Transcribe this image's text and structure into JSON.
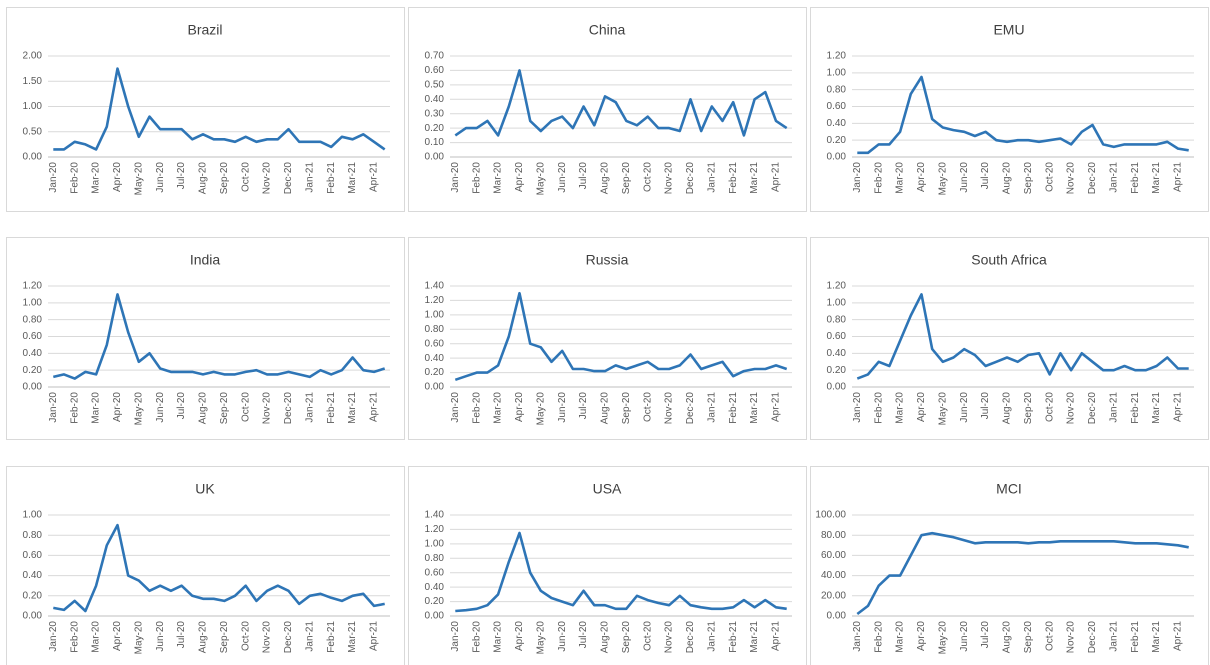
{
  "chart_data": [
    {
      "type": "line",
      "title": "Brazil",
      "color": "#2e75b6",
      "grid": true,
      "categories": [
        "Jan-20",
        null,
        "Feb-20",
        null,
        "Mar-20",
        null,
        "Apr-20",
        null,
        "May-20",
        null,
        "Jun-20",
        null,
        "Jul-20",
        null,
        "Aug-20",
        null,
        "Sep-20",
        null,
        "Oct-20",
        null,
        "Nov-20",
        null,
        "Dec-20",
        null,
        "Jan-21",
        null,
        "Feb-21",
        null,
        "Mar-21",
        null,
        "Apr-21",
        null
      ],
      "values": [
        0.15,
        0.15,
        0.3,
        0.25,
        0.15,
        0.6,
        1.75,
        1.0,
        0.4,
        0.8,
        0.55,
        0.55,
        0.55,
        0.35,
        0.45,
        0.35,
        0.35,
        0.3,
        0.4,
        0.3,
        0.35,
        0.35,
        0.55,
        0.3,
        0.3,
        0.3,
        0.2,
        0.4,
        0.35,
        0.45,
        0.3,
        0.15
      ],
      "ylim": [
        0,
        2
      ],
      "yticks": [
        {
          "value": 0,
          "label": "0.00"
        },
        {
          "value": 0.5,
          "label": "0.50"
        },
        {
          "value": 1,
          "label": "1.00"
        },
        {
          "value": 1.5,
          "label": "1.50"
        },
        {
          "value": 2,
          "label": "2.00"
        }
      ]
    },
    {
      "type": "line",
      "title": "China",
      "color": "#2e75b6",
      "grid": true,
      "categories": [
        "Jan-20",
        null,
        "Feb-20",
        null,
        "Mar-20",
        null,
        "Apr-20",
        null,
        "May-20",
        null,
        "Jun-20",
        null,
        "Jul-20",
        null,
        "Aug-20",
        null,
        "Sep-20",
        null,
        "Oct-20",
        null,
        "Nov-20",
        null,
        "Dec-20",
        null,
        "Jan-21",
        null,
        "Feb-21",
        null,
        "Mar-21",
        null,
        "Apr-21",
        null
      ],
      "values": [
        0.15,
        0.2,
        0.2,
        0.25,
        0.15,
        0.35,
        0.6,
        0.25,
        0.18,
        0.25,
        0.28,
        0.2,
        0.35,
        0.22,
        0.42,
        0.38,
        0.25,
        0.22,
        0.28,
        0.2,
        0.2,
        0.18,
        0.4,
        0.18,
        0.35,
        0.25,
        0.38,
        0.15,
        0.4,
        0.45,
        0.25,
        0.2
      ],
      "ylim": [
        0,
        0.7
      ],
      "yticks": [
        {
          "value": 0,
          "label": "0.00"
        },
        {
          "value": 0.1,
          "label": "0.10"
        },
        {
          "value": 0.2,
          "label": "0.20"
        },
        {
          "value": 0.3,
          "label": "0.30"
        },
        {
          "value": 0.4,
          "label": "0.40"
        },
        {
          "value": 0.5,
          "label": "0.50"
        },
        {
          "value": 0.6,
          "label": "0.60"
        },
        {
          "value": 0.7,
          "label": "0.70"
        }
      ]
    },
    {
      "type": "line",
      "title": "EMU",
      "color": "#2e75b6",
      "grid": true,
      "categories": [
        "Jan-20",
        null,
        "Feb-20",
        null,
        "Mar-20",
        null,
        "Apr-20",
        null,
        "May-20",
        null,
        "Jun-20",
        null,
        "Jul-20",
        null,
        "Aug-20",
        null,
        "Sep-20",
        null,
        "Oct-20",
        null,
        "Nov-20",
        null,
        "Dec-20",
        null,
        "Jan-21",
        null,
        "Feb-21",
        null,
        "Mar-21",
        null,
        "Apr-21",
        null
      ],
      "values": [
        0.05,
        0.05,
        0.15,
        0.15,
        0.3,
        0.75,
        0.95,
        0.45,
        0.35,
        0.32,
        0.3,
        0.25,
        0.3,
        0.2,
        0.18,
        0.2,
        0.2,
        0.18,
        0.2,
        0.22,
        0.15,
        0.3,
        0.38,
        0.15,
        0.12,
        0.15,
        0.15,
        0.15,
        0.15,
        0.18,
        0.1,
        0.08
      ],
      "ylim": [
        0,
        1.2
      ],
      "yticks": [
        {
          "value": 0,
          "label": "0.00"
        },
        {
          "value": 0.2,
          "label": "0.20"
        },
        {
          "value": 0.4,
          "label": "0.40"
        },
        {
          "value": 0.6,
          "label": "0.60"
        },
        {
          "value": 0.8,
          "label": "0.80"
        },
        {
          "value": 1,
          "label": "1.00"
        },
        {
          "value": 1.2,
          "label": "1.20"
        }
      ]
    },
    {
      "type": "line",
      "title": "India",
      "color": "#2e75b6",
      "grid": true,
      "categories": [
        "Jan-20",
        null,
        "Feb-20",
        null,
        "Mar-20",
        null,
        "Apr-20",
        null,
        "May-20",
        null,
        "Jun-20",
        null,
        "Jul-20",
        null,
        "Aug-20",
        null,
        "Sep-20",
        null,
        "Oct-20",
        null,
        "Nov-20",
        null,
        "Dec-20",
        null,
        "Jan-21",
        null,
        "Feb-21",
        null,
        "Mar-21",
        null,
        "Apr-21",
        null
      ],
      "values": [
        0.12,
        0.15,
        0.1,
        0.18,
        0.15,
        0.5,
        1.1,
        0.65,
        0.3,
        0.4,
        0.22,
        0.18,
        0.18,
        0.18,
        0.15,
        0.18,
        0.15,
        0.15,
        0.18,
        0.2,
        0.15,
        0.15,
        0.18,
        0.15,
        0.12,
        0.2,
        0.15,
        0.2,
        0.35,
        0.2,
        0.18,
        0.22
      ],
      "ylim": [
        0,
        1.2
      ],
      "yticks": [
        {
          "value": 0,
          "label": "0.00"
        },
        {
          "value": 0.2,
          "label": "0.20"
        },
        {
          "value": 0.4,
          "label": "0.40"
        },
        {
          "value": 0.6,
          "label": "0.60"
        },
        {
          "value": 0.8,
          "label": "0.80"
        },
        {
          "value": 1,
          "label": "1.00"
        },
        {
          "value": 1.2,
          "label": "1.20"
        }
      ]
    },
    {
      "type": "line",
      "title": "Russia",
      "color": "#2e75b6",
      "grid": true,
      "categories": [
        "Jan-20",
        null,
        "Feb-20",
        null,
        "Mar-20",
        null,
        "Apr-20",
        null,
        "May-20",
        null,
        "Jun-20",
        null,
        "Jul-20",
        null,
        "Aug-20",
        null,
        "Sep-20",
        null,
        "Oct-20",
        null,
        "Nov-20",
        null,
        "Dec-20",
        null,
        "Jan-21",
        null,
        "Feb-21",
        null,
        "Mar-21",
        null,
        "Apr-21",
        null
      ],
      "values": [
        0.1,
        0.15,
        0.2,
        0.2,
        0.3,
        0.7,
        1.3,
        0.6,
        0.55,
        0.35,
        0.5,
        0.25,
        0.25,
        0.22,
        0.22,
        0.3,
        0.25,
        0.3,
        0.35,
        0.25,
        0.25,
        0.3,
        0.45,
        0.25,
        0.3,
        0.35,
        0.15,
        0.22,
        0.25,
        0.25,
        0.3,
        0.25
      ],
      "ylim": [
        0,
        1.4
      ],
      "yticks": [
        {
          "value": 0,
          "label": "0.00"
        },
        {
          "value": 0.2,
          "label": "0.20"
        },
        {
          "value": 0.4,
          "label": "0.40"
        },
        {
          "value": 0.6,
          "label": "0.60"
        },
        {
          "value": 0.8,
          "label": "0.80"
        },
        {
          "value": 1,
          "label": "1.00"
        },
        {
          "value": 1.2,
          "label": "1.20"
        },
        {
          "value": 1.4,
          "label": "1.40"
        }
      ]
    },
    {
      "type": "line",
      "title": "South Africa",
      "color": "#2e75b6",
      "grid": true,
      "categories": [
        "Jan-20",
        null,
        "Feb-20",
        null,
        "Mar-20",
        null,
        "Apr-20",
        null,
        "May-20",
        null,
        "Jun-20",
        null,
        "Jul-20",
        null,
        "Aug-20",
        null,
        "Sep-20",
        null,
        "Oct-20",
        null,
        "Nov-20",
        null,
        "Dec-20",
        null,
        "Jan-21",
        null,
        "Feb-21",
        null,
        "Mar-21",
        null,
        "Apr-21",
        null
      ],
      "values": [
        0.1,
        0.15,
        0.3,
        0.25,
        0.55,
        0.85,
        1.1,
        0.45,
        0.3,
        0.35,
        0.45,
        0.38,
        0.25,
        0.3,
        0.35,
        0.3,
        0.38,
        0.4,
        0.15,
        0.4,
        0.2,
        0.4,
        0.3,
        0.2,
        0.2,
        0.25,
        0.2,
        0.2,
        0.25,
        0.35,
        0.22,
        0.22
      ],
      "ylim": [
        0,
        1.2
      ],
      "yticks": [
        {
          "value": 0,
          "label": "0.00"
        },
        {
          "value": 0.2,
          "label": "0.20"
        },
        {
          "value": 0.4,
          "label": "0.40"
        },
        {
          "value": 0.6,
          "label": "0.60"
        },
        {
          "value": 0.8,
          "label": "0.80"
        },
        {
          "value": 1,
          "label": "1.00"
        },
        {
          "value": 1.2,
          "label": "1.20"
        }
      ]
    },
    {
      "type": "line",
      "title": "UK",
      "color": "#2e75b6",
      "grid": true,
      "categories": [
        "Jan-20",
        null,
        "Feb-20",
        null,
        "Mar-20",
        null,
        "Apr-20",
        null,
        "May-20",
        null,
        "Jun-20",
        null,
        "Jul-20",
        null,
        "Aug-20",
        null,
        "Sep-20",
        null,
        "Oct-20",
        null,
        "Nov-20",
        null,
        "Dec-20",
        null,
        "Jan-21",
        null,
        "Feb-21",
        null,
        "Mar-21",
        null,
        "Apr-21",
        null
      ],
      "values": [
        0.08,
        0.06,
        0.15,
        0.05,
        0.3,
        0.7,
        0.9,
        0.4,
        0.35,
        0.25,
        0.3,
        0.25,
        0.3,
        0.2,
        0.17,
        0.17,
        0.15,
        0.2,
        0.3,
        0.15,
        0.25,
        0.3,
        0.25,
        0.12,
        0.2,
        0.22,
        0.18,
        0.15,
        0.2,
        0.22,
        0.1,
        0.12
      ],
      "ylim": [
        0,
        1
      ],
      "yticks": [
        {
          "value": 0,
          "label": "0.00"
        },
        {
          "value": 0.2,
          "label": "0.20"
        },
        {
          "value": 0.4,
          "label": "0.40"
        },
        {
          "value": 0.6,
          "label": "0.60"
        },
        {
          "value": 0.8,
          "label": "0.80"
        },
        {
          "value": 1,
          "label": "1.00"
        }
      ]
    },
    {
      "type": "line",
      "title": "USA",
      "color": "#2e75b6",
      "grid": true,
      "categories": [
        "Jan-20",
        null,
        "Feb-20",
        null,
        "Mar-20",
        null,
        "Apr-20",
        null,
        "May-20",
        null,
        "Jun-20",
        null,
        "Jul-20",
        null,
        "Aug-20",
        null,
        "Sep-20",
        null,
        "Oct-20",
        null,
        "Nov-20",
        null,
        "Dec-20",
        null,
        "Jan-21",
        null,
        "Feb-21",
        null,
        "Mar-21",
        null,
        "Apr-21",
        null
      ],
      "values": [
        0.07,
        0.08,
        0.1,
        0.15,
        0.3,
        0.75,
        1.15,
        0.6,
        0.35,
        0.25,
        0.2,
        0.15,
        0.35,
        0.15,
        0.15,
        0.1,
        0.1,
        0.28,
        0.22,
        0.18,
        0.15,
        0.28,
        0.15,
        0.12,
        0.1,
        0.1,
        0.12,
        0.22,
        0.12,
        0.22,
        0.12,
        0.1
      ],
      "ylim": [
        0,
        1.4
      ],
      "yticks": [
        {
          "value": 0,
          "label": "0.00"
        },
        {
          "value": 0.2,
          "label": "0.20"
        },
        {
          "value": 0.4,
          "label": "0.40"
        },
        {
          "value": 0.6,
          "label": "0.60"
        },
        {
          "value": 0.8,
          "label": "0.80"
        },
        {
          "value": 1,
          "label": "1.00"
        },
        {
          "value": 1.2,
          "label": "1.20"
        },
        {
          "value": 1.4,
          "label": "1.40"
        }
      ]
    },
    {
      "type": "line",
      "title": "MCI",
      "color": "#2e75b6",
      "grid": true,
      "categories": [
        "Jan-20",
        null,
        "Feb-20",
        null,
        "Mar-20",
        null,
        "Apr-20",
        null,
        "May-20",
        null,
        "Jun-20",
        null,
        "Jul-20",
        null,
        "Aug-20",
        null,
        "Sep-20",
        null,
        "Oct-20",
        null,
        "Nov-20",
        null,
        "Dec-20",
        null,
        "Jan-21",
        null,
        "Feb-21",
        null,
        "Mar-21",
        null,
        "Apr-21",
        null
      ],
      "values": [
        2,
        10,
        30,
        40,
        40,
        60,
        80,
        82,
        80,
        78,
        75,
        72,
        73,
        73,
        73,
        73,
        72,
        73,
        73,
        74,
        74,
        74,
        74,
        74,
        74,
        73,
        72,
        72,
        72,
        71,
        70,
        68
      ],
      "ylim": [
        0,
        100
      ],
      "yticks": [
        {
          "value": 0,
          "label": "0.00"
        },
        {
          "value": 20,
          "label": "20.00"
        },
        {
          "value": 40,
          "label": "40.00"
        },
        {
          "value": 60,
          "label": "60.00"
        },
        {
          "value": 80,
          "label": "80.00"
        },
        {
          "value": 100,
          "label": "100.00"
        }
      ]
    }
  ]
}
